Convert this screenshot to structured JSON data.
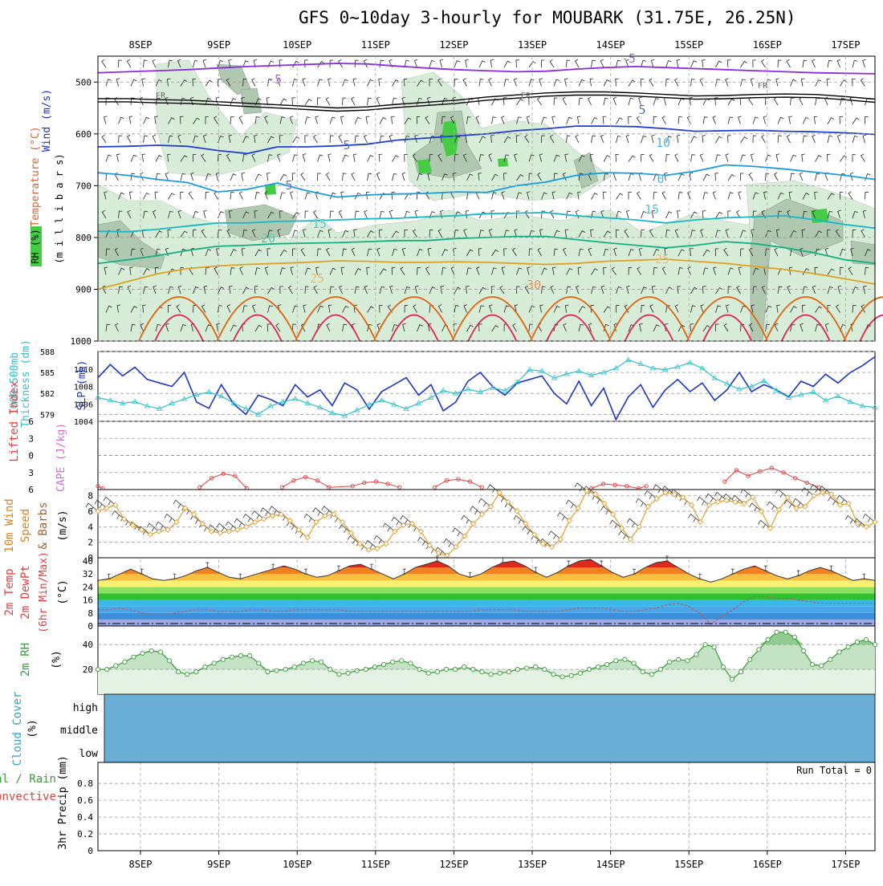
{
  "title": "GFS 0~10day 3-hourly for MOUBARK (31.75E, 26.25N)",
  "days": [
    "8SEP",
    "9SEP",
    "10SEP",
    "11SEP",
    "12SEP",
    "13SEP",
    "14SEP",
    "15SEP",
    "16SEP",
    "17SEP"
  ],
  "colors": {
    "temp_minus5": "#8a2be2",
    "temp_5": "#1f3fd0",
    "temp_10": "#1a9be0",
    "temp_15": "#18b8c8",
    "temp_20": "#10b080",
    "temp_25": "#e0a020",
    "temp_30": "#e06010",
    "temp_35": "#e02050",
    "rh_light": "#d8edd8",
    "rh_mid": "#b0c8b0",
    "rh_green": "#44cc44",
    "slp": "#1a34c8",
    "thickness": "#30c0c8",
    "lifted_index": "#e04040",
    "wind10m": "#e0a030",
    "rh2m": "#3a9a3a",
    "cloud": "#6aaed6"
  },
  "labels": {
    "upper_wind": "Wind (m/s)",
    "upper_temp": "Temperature (°C)",
    "upper_rh": "RH (%)",
    "upper_unit": "(m i l l i b a r s)",
    "thick_1": "Thickness (dm)",
    "thick_2": "1000-500mb",
    "slp": "SLP (mb)",
    "li": "Lifted Index",
    "cape": "CAPE (J/kg)",
    "wind_1": "10m Wind",
    "wind_2": "Speed",
    "wind_3": "& Barbs",
    "wind_unit": "(m/s)",
    "temp_1": "2m Temp",
    "temp_2": "2m DewPt",
    "temp_3": "(6hr Min/Max)",
    "temp_unit": "(°C)",
    "rh_1": "2m RH",
    "rh_unit": "(%)",
    "cloud_1": "Cloud Cover",
    "cloud_unit": "(%)",
    "cloud_high": "high",
    "cloud_middle": "middle",
    "cloud_low": "low",
    "precip_1": "Total / Rain",
    "precip_2": "Convective",
    "precip_3": "3hr Precip (mm)",
    "run_total": "Run Total = 0"
  },
  "chart_data": [
    {
      "type": "heatmap",
      "panel": "upper-air cross-section",
      "ylabel": "millibars",
      "y_reversed": true,
      "ylim": [
        1000,
        450
      ],
      "y_ticks": [
        500,
        600,
        700,
        800,
        900,
        1000
      ],
      "x_ticks": [
        "8SEP",
        "9SEP",
        "10SEP",
        "11SEP",
        "12SEP",
        "13SEP",
        "14SEP",
        "15SEP",
        "16SEP",
        "17SEP"
      ],
      "contour_labels": [
        "-5",
        "-5",
        "FR",
        "FR",
        "FR",
        "5",
        "5",
        "5",
        "10",
        "10",
        "10",
        "0",
        "15",
        "15",
        "20",
        "25",
        "25",
        "30"
      ],
      "isotherms": [
        {
          "name": "-5",
          "y": [
            482,
            480,
            478,
            476,
            473,
            470,
            468,
            466,
            464,
            465,
            469,
            473,
            476,
            478,
            480,
            479,
            475,
            472,
            470,
            472,
            474,
            476,
            478,
            480,
            482,
            483,
            484
          ]
        },
        {
          "name": "FR",
          "y": [
            535,
            535,
            537,
            538,
            541,
            544,
            547,
            550,
            553,
            551,
            546,
            542,
            538,
            532,
            528,
            524,
            522,
            522,
            524,
            527,
            530,
            529,
            527,
            526,
            527,
            531,
            536
          ]
        },
        {
          "name": "5",
          "y": [
            625,
            624,
            622,
            624,
            632,
            638,
            625,
            625,
            623,
            620,
            612,
            608,
            604,
            600,
            594,
            590,
            585,
            585,
            586,
            590,
            595,
            594,
            593,
            595,
            596,
            598,
            601
          ]
        },
        {
          "name": "10",
          "y": [
            675,
            680,
            688,
            694,
            712,
            707,
            695,
            710,
            722,
            718,
            716,
            715,
            712,
            713,
            700,
            693,
            680,
            675,
            676,
            680,
            672,
            660,
            663,
            668,
            674,
            680,
            688
          ]
        },
        {
          "name": "15",
          "y": [
            788,
            789,
            784,
            778,
            772,
            772,
            769,
            768,
            766,
            764,
            763,
            760,
            758,
            754,
            753,
            752,
            758,
            762,
            766,
            772,
            766,
            762,
            760,
            758,
            766,
            775,
            782
          ]
        },
        {
          "name": "20",
          "y": [
            850,
            843,
            835,
            825,
            817,
            815,
            812,
            811,
            810,
            808,
            806,
            806,
            802,
            800,
            798,
            798,
            804,
            810,
            815,
            820,
            815,
            808,
            812,
            820,
            830,
            843,
            850
          ]
        },
        {
          "name": "25",
          "y": [
            900,
            885,
            870,
            860,
            855,
            852,
            850,
            848,
            845,
            846,
            848,
            848,
            847,
            848,
            850,
            852,
            850,
            846,
            844,
            842,
            846,
            850,
            856,
            862,
            870,
            880,
            890
          ]
        }
      ],
      "rh_levels": [
        "70",
        "80",
        "90"
      ]
    },
    {
      "type": "line",
      "panel": "thickness-slp",
      "series": [
        {
          "name": "SLP (mb)",
          "axis": "right",
          "ylim": [
            1004,
            1012
          ],
          "values": [
            1009.0,
            1010.5,
            1009.2,
            1010.2,
            1008.8,
            1008.4,
            1008.0,
            1009.6,
            1006.2,
            1005.5,
            1008.2,
            1006.0,
            1004.8,
            1007.0,
            1006.5,
            1005.8,
            1008.2,
            1006.8,
            1007.6,
            1005.8,
            1008.4,
            1007.6,
            1005.4,
            1007.4,
            1008.2,
            1009.0,
            1007.0,
            1008.2,
            1005.2,
            1006.2,
            1008.6,
            1009.6,
            1008.0,
            1007.0,
            1008.4,
            1008.8,
            1009.2,
            1007.2,
            1006.0,
            1008.6,
            1005.8,
            1007.8,
            1004.2,
            1006.8,
            1008.2,
            1005.6,
            1007.6,
            1008.8,
            1007.4,
            1008.4,
            1006.4,
            1007.6,
            1009.6,
            1007.4,
            1008.2,
            1007.6,
            1006.8,
            1008.6,
            1008.0,
            1009.4,
            1008.4,
            1009.6,
            1010.4,
            1011.4
          ]
        },
        {
          "name": "Thickness (dm)",
          "axis": "left",
          "ylim": [
            578,
            588
          ],
          "values": [
            581.4,
            581.0,
            580.6,
            580.8,
            580.2,
            579.8,
            580.6,
            581.2,
            581.8,
            582.2,
            581.6,
            580.6,
            579.8,
            579.0,
            580.2,
            580.8,
            581.2,
            580.6,
            580.0,
            579.2,
            578.8,
            579.6,
            580.4,
            581.0,
            580.4,
            579.8,
            580.6,
            581.4,
            582.4,
            582.0,
            582.6,
            582.2,
            582.8,
            582.4,
            583.6,
            585.4,
            585.2,
            584.2,
            584.8,
            585.2,
            584.6,
            585.0,
            585.6,
            586.8,
            586.2,
            585.6,
            585.4,
            585.8,
            586.4,
            585.6,
            584.2,
            583.4,
            582.6,
            583.0,
            583.8,
            582.4,
            581.4,
            581.8,
            582.2,
            581.0,
            581.6,
            580.8,
            580.2,
            580.0
          ]
        }
      ]
    },
    {
      "type": "line",
      "panel": "lifted-index-cape",
      "ylim": [
        6,
        -6
      ],
      "y_ticks": [
        -6,
        -3,
        0,
        3,
        6
      ],
      "series": [
        {
          "name": "Lifted Index",
          "x": [
            0.0,
            0.06,
            1.3,
            1.45,
            1.6,
            1.75,
            1.9,
            2.35,
            2.5,
            2.65,
            2.8,
            2.95,
            3.25,
            3.4,
            3.55,
            3.7,
            3.85,
            4.3,
            4.45,
            4.6,
            4.75,
            4.9,
            6.3,
            6.45,
            6.6,
            6.75,
            6.9,
            7.0,
            8.0,
            8.15,
            8.3,
            8.45,
            8.6,
            8.75,
            8.9,
            9.05,
            9.2
          ],
          "values": [
            5.4,
            5.8,
            5.6,
            4.0,
            3.2,
            3.6,
            5.8,
            5.6,
            4.4,
            3.8,
            4.4,
            5.6,
            5.4,
            4.8,
            4.6,
            5.0,
            5.6,
            5.6,
            4.4,
            4.2,
            4.6,
            5.6,
            5.8,
            5.0,
            5.2,
            5.4,
            5.8,
            5.4,
            4.6,
            2.6,
            3.6,
            2.8,
            2.2,
            3.0,
            4.0,
            4.8,
            5.6
          ]
        }
      ]
    },
    {
      "type": "line",
      "panel": "10m-wind",
      "ylabel": "(m/s)",
      "ylim": [
        0,
        8
      ],
      "y_ticks": [
        0,
        2,
        4,
        6,
        8
      ],
      "series": [
        {
          "name": "10m Wind Speed",
          "values": [
            6.0,
            6.4,
            6.8,
            5.0,
            4.2,
            3.6,
            3.0,
            3.4,
            3.6,
            4.6,
            6.4,
            5.6,
            4.4,
            3.4,
            3.2,
            3.4,
            3.6,
            4.0,
            4.6,
            5.0,
            5.4,
            5.6,
            4.8,
            3.6,
            2.6,
            4.6,
            5.4,
            5.6,
            4.6,
            3.2,
            1.8,
            1.0,
            1.2,
            1.8,
            3.4,
            4.2,
            4.4,
            3.4,
            1.6,
            0.6,
            0.3,
            1.4,
            2.8,
            4.4,
            5.6,
            6.6,
            8.4,
            7.2,
            6.0,
            4.4,
            3.0,
            1.8,
            1.4,
            2.4,
            4.8,
            6.4,
            8.6,
            8.2,
            7.0,
            5.6,
            3.8,
            2.4,
            4.0,
            6.6,
            7.6,
            8.4,
            8.2,
            7.8,
            6.8,
            4.6,
            6.8,
            7.2,
            7.4,
            7.2,
            7.0,
            7.8,
            6.0,
            3.8,
            6.2,
            7.8,
            6.4,
            6.6,
            8.0,
            8.4,
            8.2,
            6.8,
            7.0,
            4.4,
            4.0,
            4.6
          ]
        }
      ]
    },
    {
      "type": "area",
      "panel": "2m-temperature",
      "ylabel": "(°C)",
      "ylim": [
        0,
        42
      ],
      "y_ticks": [
        0,
        8,
        16,
        24,
        32,
        40
      ],
      "series": [
        {
          "name": "2m Temp",
          "values": [
            28,
            29,
            32,
            35,
            32,
            29,
            28,
            29,
            31,
            34,
            36,
            33,
            30,
            29,
            31,
            33,
            35,
            37,
            35,
            32,
            30,
            31,
            34,
            37,
            38,
            35,
            32,
            29,
            32,
            36,
            38,
            40,
            37,
            32,
            30,
            32,
            36,
            39,
            40,
            37,
            33,
            30,
            33,
            37,
            40,
            41,
            37,
            33,
            30,
            32,
            36,
            39,
            40,
            36,
            32,
            29,
            27,
            29,
            32,
            35,
            37,
            34,
            31,
            29,
            31,
            34,
            36,
            34,
            31,
            28,
            29,
            28
          ]
        },
        {
          "name": "2m DewPt",
          "values": [
            10,
            10,
            11,
            10,
            8,
            7,
            7,
            8,
            9,
            10,
            10,
            9,
            9,
            9,
            10,
            10,
            9,
            9,
            10,
            10,
            10,
            10,
            10,
            9,
            9,
            9,
            9,
            9,
            9,
            9,
            9,
            9,
            9,
            9,
            9,
            10,
            10,
            10,
            10,
            9,
            9,
            9,
            9,
            10,
            11,
            11,
            11,
            10,
            9,
            9,
            10,
            11,
            13,
            14,
            12,
            8,
            1,
            6,
            10,
            15,
            18,
            18,
            17,
            17,
            16,
            15,
            14,
            14,
            14,
            14,
            14,
            14
          ]
        }
      ],
      "bands": [
        {
          "from": 0,
          "to": 4,
          "color": "#9aa8e8"
        },
        {
          "from": 4,
          "to": 8,
          "color": "#3a8fd8"
        },
        {
          "from": 8,
          "to": 12,
          "color": "#4aa6e6"
        },
        {
          "from": 12,
          "to": 16,
          "color": "#3ab8e8"
        },
        {
          "from": 16,
          "to": 20,
          "color": "#30c030"
        },
        {
          "from": 20,
          "to": 24,
          "color": "#8ee060"
        },
        {
          "from": 24,
          "to": 28,
          "color": "#f8f070"
        },
        {
          "from": 28,
          "to": 32,
          "color": "#f8c040"
        },
        {
          "from": 32,
          "to": 36,
          "color": "#f08020"
        },
        {
          "from": 36,
          "to": 40,
          "color": "#e02818"
        },
        {
          "from": 40,
          "to": 44,
          "color": "#a01010"
        }
      ]
    },
    {
      "type": "area",
      "panel": "2m-rh",
      "ylabel": "(%)",
      "ylim": [
        0,
        55
      ],
      "y_ticks": [
        20,
        40
      ],
      "series": [
        {
          "name": "2m RH",
          "values": [
            20,
            20,
            23,
            26,
            30,
            33,
            35,
            34,
            27,
            18,
            16,
            18,
            22,
            25,
            28,
            30,
            31,
            31,
            25,
            18,
            19,
            20,
            22,
            25,
            27,
            26,
            20,
            16,
            17,
            19,
            20,
            22,
            24,
            26,
            27,
            25,
            20,
            17,
            18,
            20,
            20,
            22,
            20,
            18,
            16,
            17,
            18,
            20,
            21,
            22,
            20,
            16,
            14,
            15,
            17,
            20,
            22,
            24,
            27,
            28,
            25,
            18,
            16,
            20,
            26,
            28,
            27,
            32,
            40,
            38,
            22,
            12,
            18,
            28,
            36,
            44,
            50,
            50,
            46,
            35,
            24,
            23,
            28,
            34,
            38,
            42,
            44,
            40
          ]
        }
      ]
    },
    {
      "type": "heatmap",
      "panel": "cloud-cover",
      "ylabel": "(%)",
      "levels": [
        "high",
        "middle",
        "low"
      ],
      "values": [
        0,
        0,
        0
      ]
    },
    {
      "type": "bar",
      "panel": "3hr-precip",
      "ylabel": "3hr Precip (mm)",
      "ylim": [
        0,
        1
      ],
      "y_ticks": [
        0,
        0.2,
        0.4,
        0.6,
        0.8
      ],
      "values": [],
      "run_total": 0
    }
  ]
}
